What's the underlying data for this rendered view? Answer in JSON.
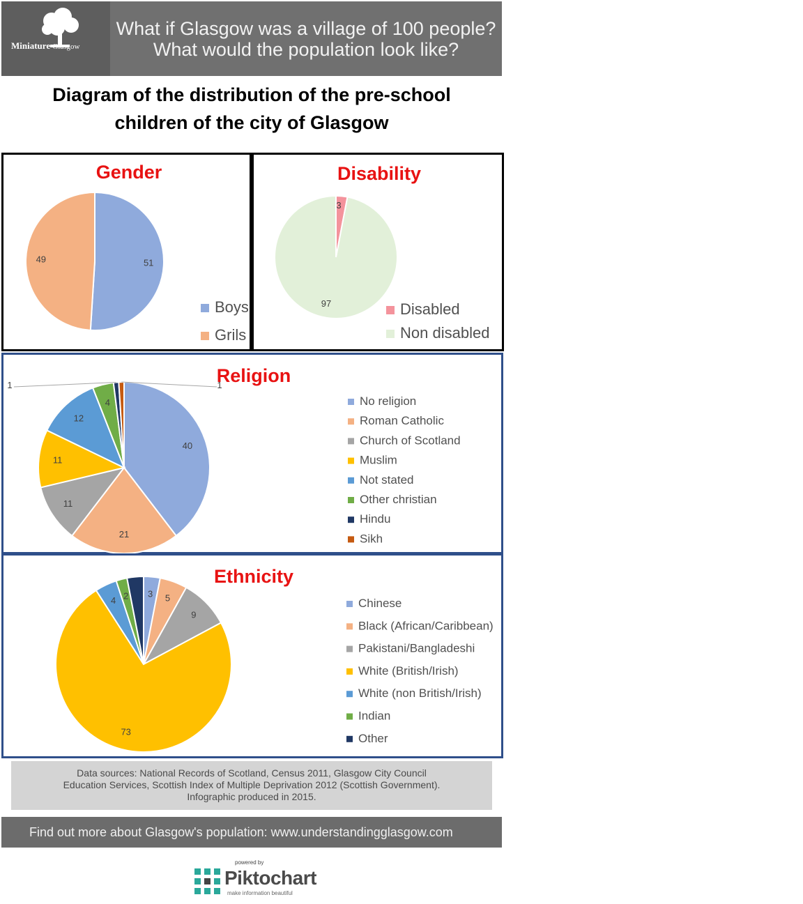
{
  "header": {
    "logo_main": "Miniature",
    "logo_sub": "Glasgow",
    "line1": "What if Glasgow was a village of 100 people?",
    "line2": "What would the population look like?"
  },
  "title": {
    "line1": "Diagram of the distribution of the pre-school",
    "line2": "children of the city of Glasgow"
  },
  "colors": {
    "title_red": "#e81212",
    "panel_border_black": "#000000",
    "panel_border_blue": "#2f4f8a"
  },
  "chart_data": [
    {
      "id": "gender",
      "type": "pie",
      "title": "Gender",
      "categories": [
        "Boys",
        "Grils"
      ],
      "values": [
        51,
        49
      ],
      "colors": [
        "#8faadc",
        "#f4b183"
      ],
      "legend": "bottom-right"
    },
    {
      "id": "disability",
      "type": "pie",
      "title": "Disability",
      "categories": [
        "Disabled",
        "Non disabled"
      ],
      "values": [
        3,
        97
      ],
      "colors": [
        "#f4939c",
        "#e2f0d9"
      ],
      "legend": "bottom-right"
    },
    {
      "id": "religion",
      "type": "pie",
      "title": "Religion",
      "categories": [
        "No religion",
        "Roman Catholic",
        "Church of Scotland",
        "Muslim",
        "Not stated",
        "Other christian",
        "Hindu",
        "Sikh"
      ],
      "values": [
        40,
        21,
        11,
        11,
        12,
        4,
        1,
        1
      ],
      "colors": [
        "#8faadc",
        "#f4b183",
        "#a5a5a5",
        "#ffc000",
        "#5b9bd5",
        "#70ad47",
        "#203864",
        "#c55a11"
      ],
      "legend": "right"
    },
    {
      "id": "ethnicity",
      "type": "pie",
      "title": "Ethnicity",
      "categories": [
        "Chinese",
        "Black (African/Caribbean)",
        "Pakistani/Bangladeshi",
        "White (British/Irish)",
        "White (non British/Irish)",
        "Indian",
        "Other"
      ],
      "values": [
        3,
        5,
        9,
        73,
        4,
        2,
        3
      ],
      "data_labels": [
        "3",
        "5",
        "9",
        "73",
        "4",
        "2",
        ""
      ],
      "colors": [
        "#8faadc",
        "#f4b183",
        "#a5a5a5",
        "#ffc000",
        "#5b9bd5",
        "#70ad47",
        "#203864"
      ],
      "legend": "right"
    }
  ],
  "sources": {
    "line1": "Data sources: National Records of Scotland, Census 2011, Glasgow City Council",
    "line2": "Education Services, Scottish Index of Multiple Deprivation 2012 (Scottish Government).",
    "line3": "Infographic produced in 2015."
  },
  "footer": {
    "text": "Find out more about Glasgow's population: www.understandingglasgow.com"
  },
  "branding": {
    "powered_by": "powered by",
    "name": "Piktochart",
    "tagline": "make information beautiful"
  }
}
